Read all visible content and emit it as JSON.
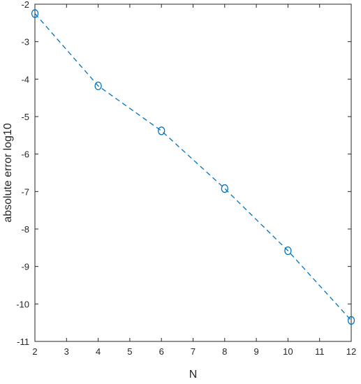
{
  "chart_data": {
    "type": "line",
    "title": "",
    "xlabel": "N",
    "ylabel": "absolute error log10",
    "xlim": [
      2,
      12
    ],
    "ylim": [
      -11,
      -2
    ],
    "xticks": [
      2,
      3,
      4,
      5,
      6,
      7,
      8,
      9,
      10,
      11,
      12
    ],
    "yticks": [
      -2,
      -3,
      -4,
      -5,
      -6,
      -7,
      -8,
      -9,
      -10,
      -11
    ],
    "grid": false,
    "legend": "none",
    "series": [
      {
        "x": [
          2,
          4,
          6,
          8,
          10,
          12
        ],
        "y": [
          -2.25,
          -4.18,
          -5.38,
          -6.92,
          -8.58,
          -10.44
        ],
        "color": "#0072BD",
        "line_style": "dashed",
        "marker": "circle-open"
      }
    ],
    "axis_color": "#262626"
  }
}
